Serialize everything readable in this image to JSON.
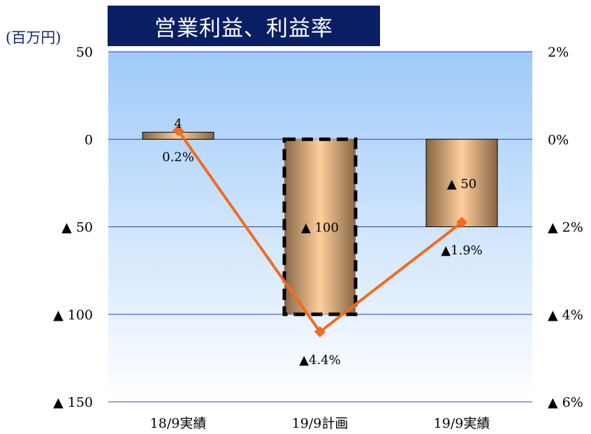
{
  "chart_data": {
    "type": "bar",
    "title": "営業利益、利益率",
    "unit_label": "(百万円)",
    "categories": [
      "18/9実績",
      "19/9計画",
      "19/9実績"
    ],
    "series": [
      {
        "name": "",
        "kind": "bar",
        "axis": "left",
        "values": [
          4,
          -100,
          -50
        ],
        "value_labels": [
          "4",
          "▲ 100",
          "▲ 50"
        ]
      },
      {
        "name": "",
        "kind": "line",
        "axis": "right",
        "values": [
          0.2,
          -4.4,
          -1.9
        ],
        "value_labels": [
          "0.2%",
          "▲4.4%",
          "▲1.9%"
        ]
      }
    ],
    "left_axis": {
      "ylim": [
        -150,
        50
      ],
      "ticks": [
        50,
        0,
        -50,
        -100,
        -150
      ],
      "tick_labels": [
        "50",
        "0",
        "▲ 50",
        "▲ 100",
        "▲ 150"
      ]
    },
    "right_axis": {
      "ylim": [
        -6,
        2
      ],
      "ticks": [
        2,
        0,
        -2,
        -4,
        -6
      ],
      "tick_labels": [
        "2%",
        "0%",
        "▲ 2%",
        "▲ 4%",
        "▲ 6%"
      ]
    },
    "planned_category_dashed": "19/9計画",
    "grid": true,
    "legend": "none",
    "colors": {
      "title_bg": "#0a1f63",
      "title_text": "#ffffff",
      "plot_bg_top": "#9fcaf9",
      "plot_bg_bottom": "#ffffff",
      "gridline": "#2f3fae",
      "bar_light": "#ffcf9c",
      "bar_dark": "#876645",
      "line": "#f26b1d"
    }
  }
}
